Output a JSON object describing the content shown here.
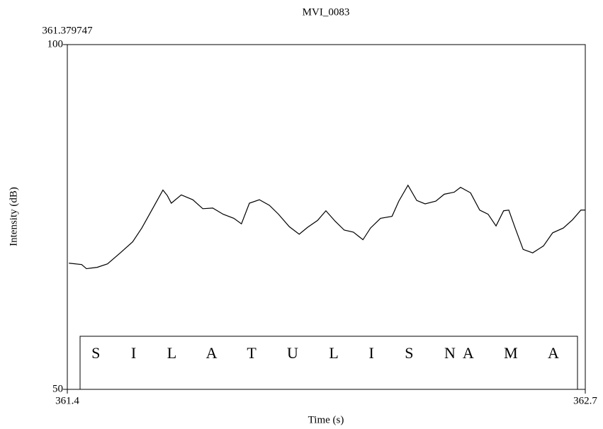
{
  "chart_data": {
    "type": "line",
    "title": "MVI_0083",
    "cursor_label": "361.379747",
    "xlabel": "Time (s)",
    "ylabel": "Intensity (dB)",
    "annotation": "S I L A T U L I S NA M A",
    "xlim": [
      361.4,
      362.7
    ],
    "xticks": [
      361.4,
      362.7
    ],
    "ylim": [
      50,
      100
    ],
    "yticks": [
      50,
      100
    ],
    "grid": false,
    "color": "#000000",
    "x": [
      361.404,
      361.436,
      361.448,
      361.475,
      361.501,
      361.533,
      361.564,
      361.587,
      361.613,
      361.64,
      361.651,
      361.661,
      361.686,
      361.715,
      361.74,
      361.765,
      361.791,
      361.818,
      361.837,
      361.857,
      361.882,
      361.907,
      361.93,
      361.957,
      361.982,
      362.003,
      362.028,
      362.049,
      362.072,
      362.095,
      362.118,
      362.142,
      362.161,
      362.186,
      362.215,
      362.232,
      362.255,
      362.277,
      362.298,
      362.325,
      362.346,
      362.371,
      362.387,
      362.412,
      362.435,
      362.456,
      362.476,
      362.495,
      362.508,
      362.524,
      362.544,
      362.568,
      362.595,
      362.618,
      362.645,
      362.668,
      362.689,
      362.7
    ],
    "values": [
      68.3,
      68.1,
      67.5,
      67.7,
      68.2,
      69.8,
      71.4,
      73.4,
      76.1,
      78.9,
      78.1,
      77.0,
      78.2,
      77.5,
      76.2,
      76.3,
      75.4,
      74.8,
      74.0,
      77.0,
      77.5,
      76.7,
      75.4,
      73.6,
      72.5,
      73.5,
      74.5,
      75.9,
      74.4,
      73.1,
      72.8,
      71.7,
      73.4,
      74.8,
      75.1,
      77.3,
      79.6,
      77.4,
      76.9,
      77.3,
      78.3,
      78.6,
      79.3,
      78.5,
      76.0,
      75.4,
      73.7,
      75.9,
      76.0,
      73.4,
      70.3,
      69.8,
      70.8,
      72.7,
      73.4,
      74.6,
      76.0,
      76.0
    ]
  }
}
